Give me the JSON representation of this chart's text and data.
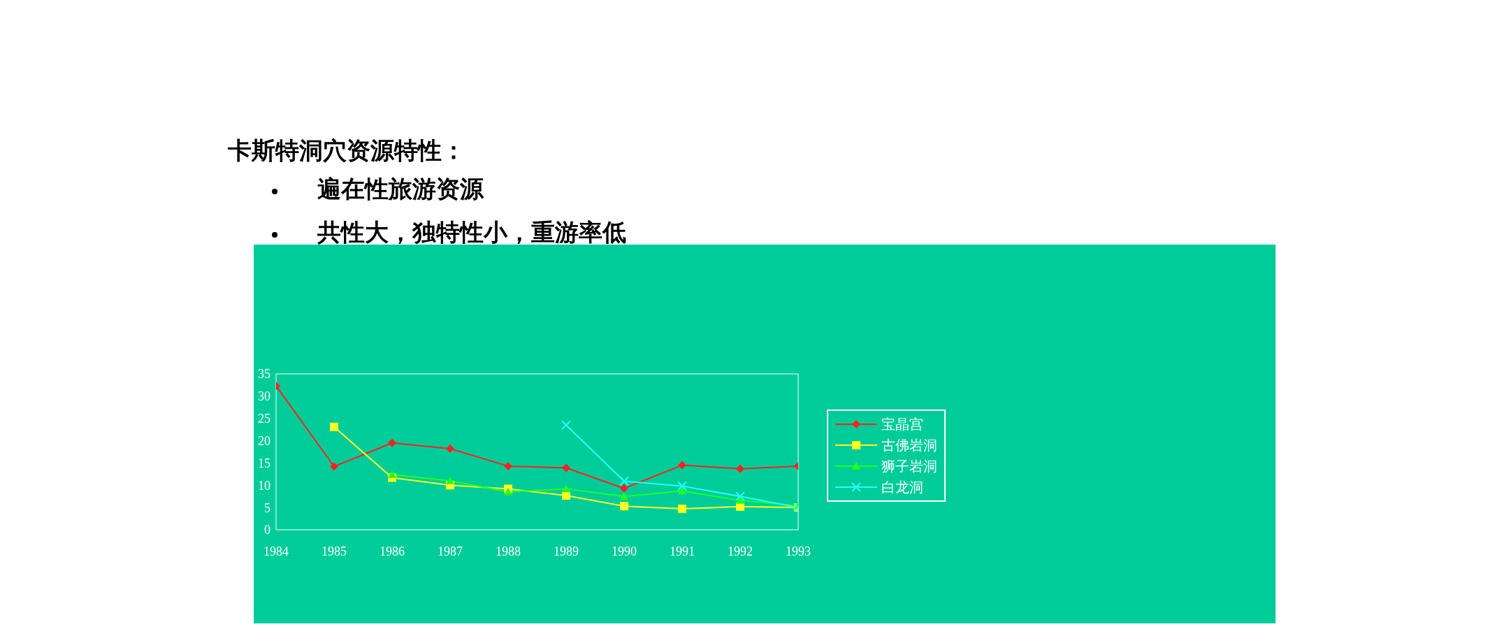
{
  "chart_data": {
    "type": "line",
    "title": "卡斯特洞穴资源特性：",
    "annotations": [
      "遍在性旅游资源",
      "共性大，独特性小，重游率低"
    ],
    "x": [
      1984,
      1985,
      1986,
      1987,
      1988,
      1989,
      1990,
      1991,
      1992,
      1993
    ],
    "xlim": [
      1984,
      1993
    ],
    "xticks": [
      1984,
      1985,
      1986,
      1987,
      1988,
      1989,
      1990,
      1991,
      1992,
      1993
    ],
    "ylim": [
      0,
      35
    ],
    "yticks": [
      0,
      5,
      10,
      15,
      20,
      25,
      30,
      35
    ],
    "grid": false,
    "legend": "right",
    "series": [
      {
        "name": "宝晶宫",
        "color": "#ff2020",
        "marker": "diamond",
        "values": [
          32.3,
          14.2,
          19.5,
          18.2,
          14.3,
          13.9,
          9.3,
          14.5,
          13.7,
          14.3
        ]
      },
      {
        "name": "古佛岩洞",
        "color": "#ffff20",
        "marker": "square",
        "values": [
          null,
          23.1,
          11.7,
          10.0,
          9.2,
          7.7,
          5.3,
          4.7,
          5.2,
          5.0
        ]
      },
      {
        "name": "狮子岩洞",
        "color": "#20ff20",
        "marker": "triangle",
        "values": [
          null,
          null,
          12.4,
          11.0,
          8.5,
          9.2,
          7.5,
          8.7,
          6.6,
          5.4
        ]
      },
      {
        "name": "白龙洞",
        "color": "#20ffff",
        "marker": "cross",
        "values": [
          null,
          null,
          null,
          null,
          null,
          23.5,
          10.9,
          9.8,
          7.5,
          5.0
        ]
      }
    ]
  }
}
